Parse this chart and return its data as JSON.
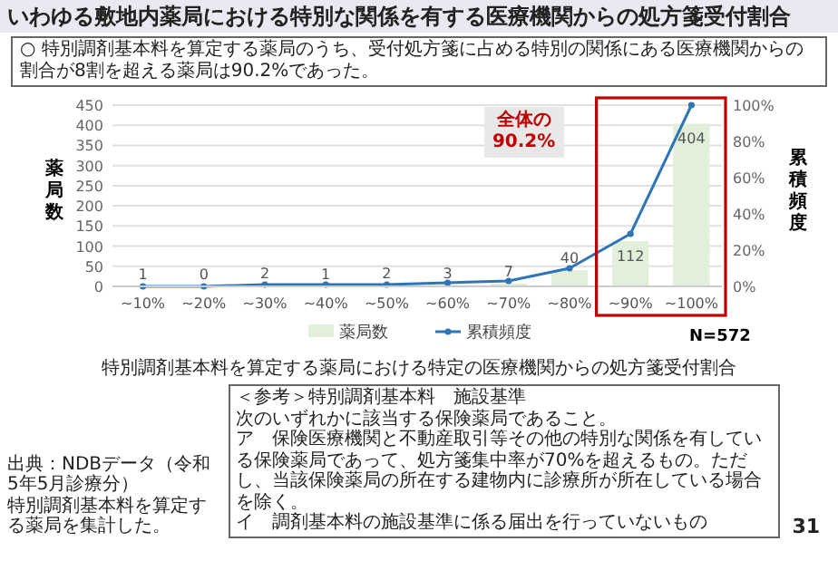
{
  "chart_data": {
    "type": "bar",
    "title": "いわゆる敷地内薬局における特別な関係を有する医療機関からの処方箋受付割合",
    "subtitle": "○ 特別調剤基本料を算定する薬局のうち、受付処方箋に占める特別の関係にある医療機関からの割合が8割を超える薬局は90.2%であった。",
    "xlabel": "特別調剤基本料を算定する薬局における特定の医療機関からの処方箋受付割合",
    "ylabel": "薬局数",
    "y2label": "累積頻度",
    "categories": [
      "~10%",
      "~20%",
      "~30%",
      "~40%",
      "~50%",
      "~60%",
      "~70%",
      "~80%",
      "~90%",
      "~100%"
    ],
    "series": [
      {
        "name": "薬局数",
        "color": "#e2efda",
        "values": [
          1,
          0,
          2,
          1,
          2,
          3,
          7,
          40,
          112,
          404
        ],
        "value_labels": [
          "1",
          "0",
          "2",
          "1",
          "2",
          "3",
          "7",
          "40",
          "112",
          "404"
        ]
      },
      {
        "name": "累積頻度",
        "type": "line",
        "axis": "y2",
        "color": "#2e75b6",
        "values": [
          0,
          0,
          1,
          1,
          1,
          2,
          3,
          10,
          29,
          100
        ]
      }
    ],
    "ylim": [
      0,
      450
    ],
    "yticks": [
      0,
      50,
      100,
      150,
      200,
      250,
      300,
      350,
      400,
      450
    ],
    "y2lim": [
      0,
      100
    ],
    "y2ticks": [
      {
        "value": 0,
        "label": "0%"
      },
      {
        "value": 20,
        "label": "20%"
      },
      {
        "value": 40,
        "label": "40%"
      },
      {
        "value": 60,
        "label": "60%"
      },
      {
        "value": 80,
        "label": "80%"
      },
      {
        "value": 100,
        "label": "100%"
      }
    ],
    "grid": "y",
    "legend": "bottom",
    "marker": "circle",
    "line_style": "solid",
    "annotations": [
      "N=572",
      "全体の90.2%",
      "出典：NDBデータ（令和5年5月診療分）",
      "特別調剤基本料を算定する薬局を集計した。",
      "＜参考＞特別調剤基本料　施設基準",
      "次のいずれかに該当する保険薬局であること。",
      "ア　保険医療機関と不動産取引等その他の特別な関係を有している保険薬局であって、処方箋集中率が70%を超えるもの。ただし、当該保険薬局の所在する建物内に診療所が所在している場合を除く。",
      "イ　調剤基本料の施設基準に係る届出を行っていないもの",
      "31"
    ]
  }
}
